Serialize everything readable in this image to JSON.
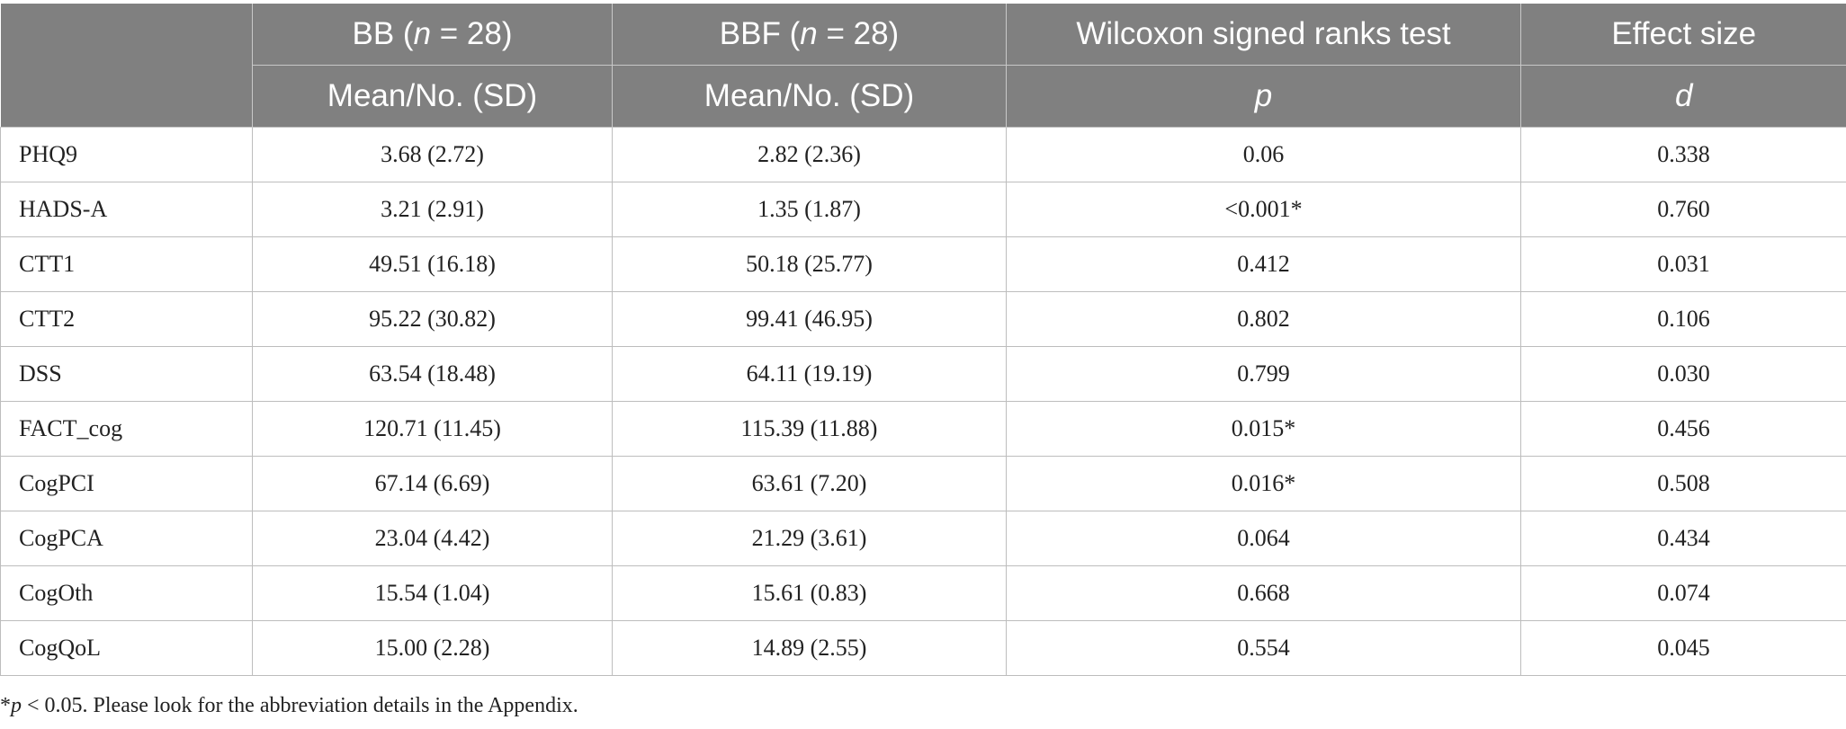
{
  "header": {
    "row1": {
      "col1_prefix": "BB (",
      "col1_var": "n",
      "col1_suffix": " = 28)",
      "col2_prefix": "BBF (",
      "col2_var": "n",
      "col2_suffix": " = 28)",
      "col3": "Wilcoxon signed ranks test",
      "col4": "Effect size"
    },
    "row2": {
      "col1": "Mean/No. (SD)",
      "col2": "Mean/No. (SD)",
      "col3": "p",
      "col4": "d"
    }
  },
  "rows": [
    {
      "label": "PHQ9",
      "bb": "3.68 (2.72)",
      "bbf": "2.82 (2.36)",
      "p": "0.06",
      "d": "0.338"
    },
    {
      "label": "HADS-A",
      "bb": "3.21 (2.91)",
      "bbf": "1.35 (1.87)",
      "p": "<0.001*",
      "d": "0.760"
    },
    {
      "label": "CTT1",
      "bb": "49.51 (16.18)",
      "bbf": "50.18 (25.77)",
      "p": "0.412",
      "d": "0.031"
    },
    {
      "label": "CTT2",
      "bb": "95.22 (30.82)",
      "bbf": "99.41 (46.95)",
      "p": "0.802",
      "d": "0.106"
    },
    {
      "label": "DSS",
      "bb": "63.54 (18.48)",
      "bbf": "64.11 (19.19)",
      "p": "0.799",
      "d": "0.030"
    },
    {
      "label": "FACT_cog",
      "bb": "120.71 (11.45)",
      "bbf": "115.39 (11.88)",
      "p": "0.015*",
      "d": "0.456"
    },
    {
      "label": "CogPCI",
      "bb": "67.14 (6.69)",
      "bbf": "63.61 (7.20)",
      "p": "0.016*",
      "d": "0.508"
    },
    {
      "label": "CogPCA",
      "bb": "23.04 (4.42)",
      "bbf": "21.29 (3.61)",
      "p": "0.064",
      "d": "0.434"
    },
    {
      "label": "CogOth",
      "bb": "15.54 (1.04)",
      "bbf": "15.61 (0.83)",
      "p": "0.668",
      "d": "0.074"
    },
    {
      "label": "CogQoL",
      "bb": "15.00 (2.28)",
      "bbf": "14.89 (2.55)",
      "p": "0.554",
      "d": "0.045"
    }
  ],
  "footnote": {
    "star": "*",
    "var": "p",
    "text": " < 0.05. Please look for the abbreviation details in the Appendix."
  }
}
